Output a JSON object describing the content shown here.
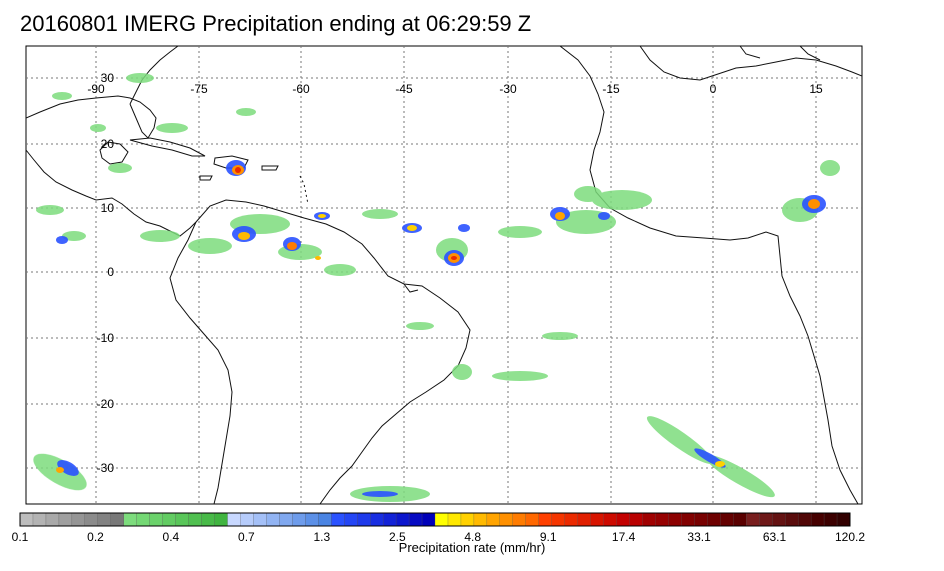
{
  "map": {
    "title": "20160801 IMERG Precipitation ending at 06:29:59 Z",
    "longitude_labels": [
      "-90",
      "-75",
      "-60",
      "-45",
      "-30",
      "-15",
      "0",
      "15"
    ],
    "latitude_labels": [
      "30",
      "20",
      "10",
      "0",
      "-10",
      "-20",
      "-30"
    ],
    "gridlines": true
  },
  "colorbar": {
    "label": "Precipitation rate (mm/hr)",
    "tick_labels": [
      "0.1",
      "0.2",
      "0.4",
      "0.7",
      "1.3",
      "2.5",
      "4.8",
      "9.1",
      "17.4",
      "33.1",
      "63.1",
      "120.2"
    ],
    "colors": [
      "#bdbdbd",
      "#b3b3b3",
      "#a9a9a9",
      "#9f9f9f",
      "#959595",
      "#8b8b8b",
      "#828282",
      "#787878",
      "#7ddc7d",
      "#74d874",
      "#6bd26b",
      "#62cc62",
      "#59c659",
      "#50c050",
      "#48ba48",
      "#40b440",
      "#c8d8ff",
      "#b6ccfb",
      "#a4c0f7",
      "#92b4f3",
      "#80a8ef",
      "#6e9ceb",
      "#5c90e7",
      "#4a84e3",
      "#2a52ff",
      "#2446f5",
      "#1e3aeb",
      "#182ee1",
      "#1222d7",
      "#0c16cd",
      "#060ac3",
      "#0000b9",
      "#ffff00",
      "#ffe800",
      "#ffd100",
      "#ffba00",
      "#ffa400",
      "#ff9000",
      "#ff7c00",
      "#ff6800",
      "#ff4000",
      "#f53500",
      "#eb2a00",
      "#e11f00",
      "#d71400",
      "#cd0a00",
      "#c30000",
      "#b90000",
      "#a00000",
      "#960000",
      "#8c0000",
      "#820000",
      "#780000",
      "#6e0000",
      "#640000",
      "#5a0000",
      "#781e1e",
      "#6e1818",
      "#641212",
      "#5a0c0c",
      "#500606",
      "#460000",
      "#3c0000",
      "#320000"
    ]
  }
}
